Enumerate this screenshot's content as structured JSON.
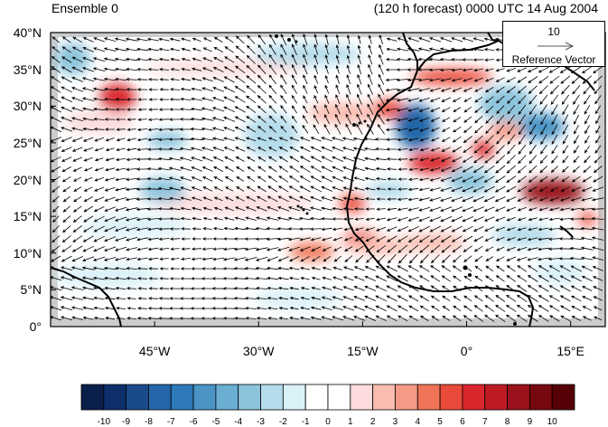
{
  "title_left": "Ensemble 0",
  "title_right": "(120 h forecast) 0000 UTC 14 Aug 2004",
  "y_axis": {
    "ticks": [
      "0°",
      "5°N",
      "10°N",
      "15°N",
      "20°N",
      "25°N",
      "30°N",
      "35°N",
      "40°N"
    ],
    "values": [
      0,
      5,
      10,
      15,
      20,
      25,
      30,
      35,
      40
    ]
  },
  "x_axis": {
    "ticks": [
      "45°W",
      "30°W",
      "15°W",
      "0°",
      "15°E"
    ],
    "values": [
      -45,
      -30,
      -15,
      0,
      15
    ]
  },
  "map_extent": {
    "lon": [
      -60,
      20
    ],
    "lat": [
      0,
      40
    ]
  },
  "reference_vector": {
    "magnitude": "10",
    "label": "Reference Vector"
  },
  "colorbar": {
    "labels": [
      "-10",
      "-9",
      "-8",
      "-7",
      "-6",
      "-5",
      "-4",
      "-3",
      "-2",
      "-1",
      "0",
      "1",
      "2",
      "3",
      "4",
      "5",
      "6",
      "7",
      "8",
      "9",
      "10"
    ],
    "colors": [
      "#0a1f4a",
      "#0d2f6b",
      "#1a4a8a",
      "#2466a8",
      "#2e7ab8",
      "#4a94c6",
      "#6aaed2",
      "#8cc4dc",
      "#b4dcea",
      "#daf1f8",
      "#ffffff",
      "#ffffff",
      "#fcdcdc",
      "#f9bcb0",
      "#f49a86",
      "#ef7458",
      "#e94a3a",
      "#d9252c",
      "#bd1b24",
      "#9a121b",
      "#78080f",
      "#550006"
    ]
  },
  "colors": {
    "land": "#ffffff",
    "missing": "#cccccc",
    "coast": "#000000"
  }
}
